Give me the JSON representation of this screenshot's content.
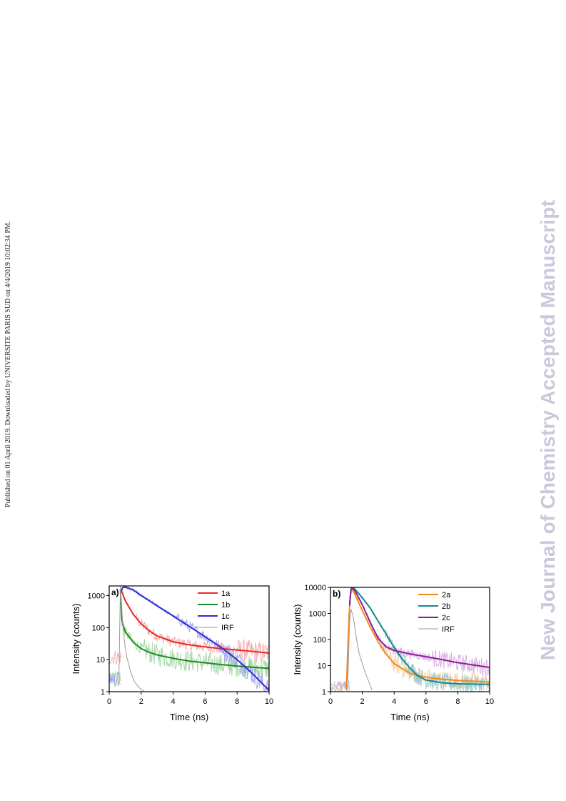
{
  "side_note": "Published on 01 April 2019. Downloaded by UNIVERSITE PARIS SUD on 4/4/2019 10:02:34 PM.",
  "watermark": "New Journal of Chemistry Accepted Manuscript",
  "chart_data": [
    {
      "type": "line",
      "panel_label": "a)",
      "xlabel": "Time (ns)",
      "ylabel": "Intensity (counts)",
      "xlim": [
        0,
        10
      ],
      "ylim": [
        1,
        2000
      ],
      "yscale": "log",
      "xticks": [
        0,
        2,
        4,
        6,
        8,
        10
      ],
      "yticks": [
        1,
        10,
        100,
        1000
      ],
      "legend_position": "top-right",
      "series": [
        {
          "name": "1a",
          "color": "#e32b2b",
          "raw_color": "#f3a3a3",
          "x": [
            0.75,
            1.0,
            1.5,
            2.0,
            2.5,
            3.0,
            4.0,
            5.0,
            6.0,
            7.0,
            8.0,
            9.0,
            10.0
          ],
          "y": [
            1500,
            700,
            260,
            130,
            80,
            55,
            36,
            29,
            25,
            22,
            20,
            18,
            16
          ]
        },
        {
          "name": "1b",
          "color": "#1e8a24",
          "raw_color": "#9bd39b",
          "x": [
            0.7,
            0.8,
            1.0,
            1.5,
            2.0,
            2.5,
            3.0,
            4.0,
            5.0,
            6.0,
            7.0,
            8.0,
            9.0,
            10.0
          ],
          "y": [
            1500,
            150,
            75,
            35,
            22,
            17,
            14,
            11,
            9,
            8,
            7,
            6.3,
            5.8,
            5.3
          ]
        },
        {
          "name": "1c",
          "color": "#2b2bd9",
          "raw_color": "#9b9bef",
          "x": [
            0.7,
            0.85,
            1.0,
            1.5,
            2.0,
            3.0,
            4.0,
            5.0,
            6.0,
            7.0,
            8.0,
            9.0,
            10.0
          ],
          "y": [
            1200,
            1800,
            1850,
            1500,
            1000,
            480,
            230,
            110,
            52,
            24,
            10,
            3.5,
            1.1
          ]
        },
        {
          "name": "IRF",
          "color": "#9a9a9a",
          "x": [
            0.6,
            0.7,
            0.8,
            0.9,
            1.0,
            1.1,
            1.2,
            1.3,
            1.4,
            1.5,
            1.6,
            1.7,
            1.8,
            1.9,
            2.0,
            2.2
          ],
          "y": [
            1.5,
            2000,
            300,
            60,
            25,
            12,
            8,
            5,
            3.5,
            2.5,
            2,
            1.7,
            1.5,
            1.3,
            1.2,
            1
          ]
        }
      ]
    },
    {
      "type": "line",
      "panel_label": "b)",
      "xlabel": "Time (ns)",
      "ylabel": "Intensity (counts)",
      "xlim": [
        0,
        10
      ],
      "ylim": [
        1,
        10000
      ],
      "yscale": "log",
      "xticks": [
        0,
        2,
        4,
        6,
        8,
        10
      ],
      "yticks": [
        1,
        10,
        100,
        1000,
        10000
      ],
      "legend_position": "top-right",
      "series": [
        {
          "name": "2a",
          "color": "#f08a1c",
          "raw_color": "#f7c995",
          "x": [
            1.0,
            1.1,
            1.2,
            1.3,
            1.5,
            2.0,
            2.5,
            3.0,
            3.5,
            4.0,
            5.0,
            6.0,
            7.0,
            8.0,
            9.0,
            10.0
          ],
          "y": [
            1.2,
            60,
            2000,
            9500,
            6000,
            1300,
            300,
            80,
            28,
            12,
            5,
            3.6,
            3.0,
            2.7,
            2.5,
            2.3
          ]
        },
        {
          "name": "2b",
          "color": "#17878a",
          "raw_color": "#8fc8ca",
          "x": [
            1.2,
            1.3,
            1.5,
            2.0,
            2.5,
            3.0,
            3.5,
            4.0,
            4.5,
            5.0,
            5.5,
            6.0,
            7.0,
            8.0,
            10.0
          ],
          "y": [
            2000,
            9800,
            9000,
            4000,
            1600,
            500,
            160,
            50,
            18,
            8,
            4,
            2.8,
            2.2,
            2.0,
            1.9
          ]
        },
        {
          "name": "2c",
          "color": "#8a1c9a",
          "raw_color": "#d3a3dc",
          "x": [
            1.2,
            1.3,
            1.5,
            2.0,
            2.5,
            3.0,
            3.5,
            4.0,
            5.0,
            6.0,
            7.0,
            8.0,
            9.0,
            10.0
          ],
          "y": [
            2000,
            9500,
            8000,
            2200,
            450,
            110,
            52,
            38,
            28,
            22,
            17,
            13,
            10.5,
            8.5
          ]
        },
        {
          "name": "IRF",
          "color": "#9a9a9a",
          "x": [
            0.9,
            1.1,
            1.2,
            1.3,
            1.4,
            1.5,
            1.6,
            1.7,
            1.8,
            2.0,
            2.2,
            2.4,
            2.6
          ],
          "y": [
            1.5,
            3,
            500,
            1400,
            900,
            400,
            150,
            60,
            30,
            12,
            5,
            2.5,
            1.2
          ]
        }
      ]
    }
  ]
}
